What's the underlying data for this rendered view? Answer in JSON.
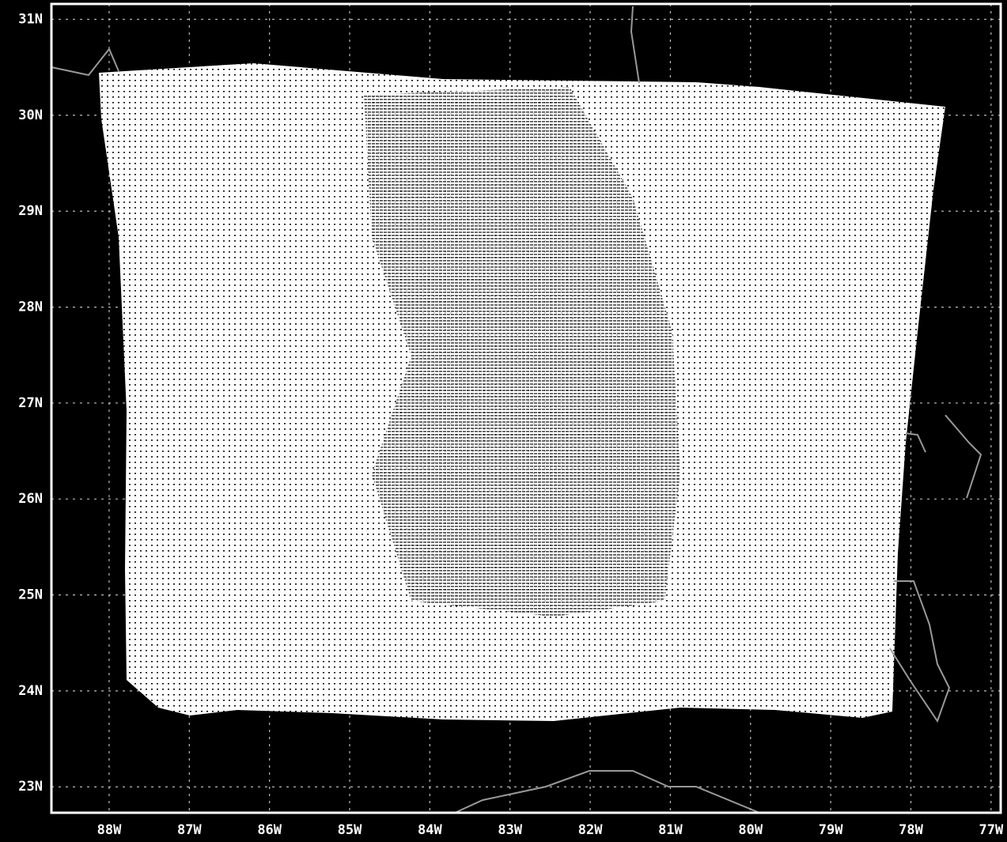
{
  "chart_data": {
    "type": "map",
    "xlim": [
      -88.72,
      -76.88
    ],
    "ylim": [
      22.73,
      31.16
    ],
    "xticks": [
      {
        "value": -88,
        "label": "88W"
      },
      {
        "value": -87,
        "label": "87W"
      },
      {
        "value": -86,
        "label": "86W"
      },
      {
        "value": -85,
        "label": "85W"
      },
      {
        "value": -84,
        "label": "84W"
      },
      {
        "value": -83,
        "label": "83W"
      },
      {
        "value": -82,
        "label": "82W"
      },
      {
        "value": -81,
        "label": "81W"
      },
      {
        "value": -80,
        "label": "80W"
      },
      {
        "value": -79,
        "label": "79W"
      },
      {
        "value": -78,
        "label": "78W"
      },
      {
        "value": -77,
        "label": "77W"
      }
    ],
    "yticks": [
      {
        "value": 23,
        "label": "23N"
      },
      {
        "value": 24,
        "label": "24N"
      },
      {
        "value": 25,
        "label": "25N"
      },
      {
        "value": 26,
        "label": "26N"
      },
      {
        "value": 27,
        "label": "27N"
      },
      {
        "value": 28,
        "label": "28N"
      },
      {
        "value": 29,
        "label": "29N"
      },
      {
        "value": 30,
        "label": "30N"
      },
      {
        "value": 31,
        "label": "31N"
      }
    ],
    "grid": true
  }
}
